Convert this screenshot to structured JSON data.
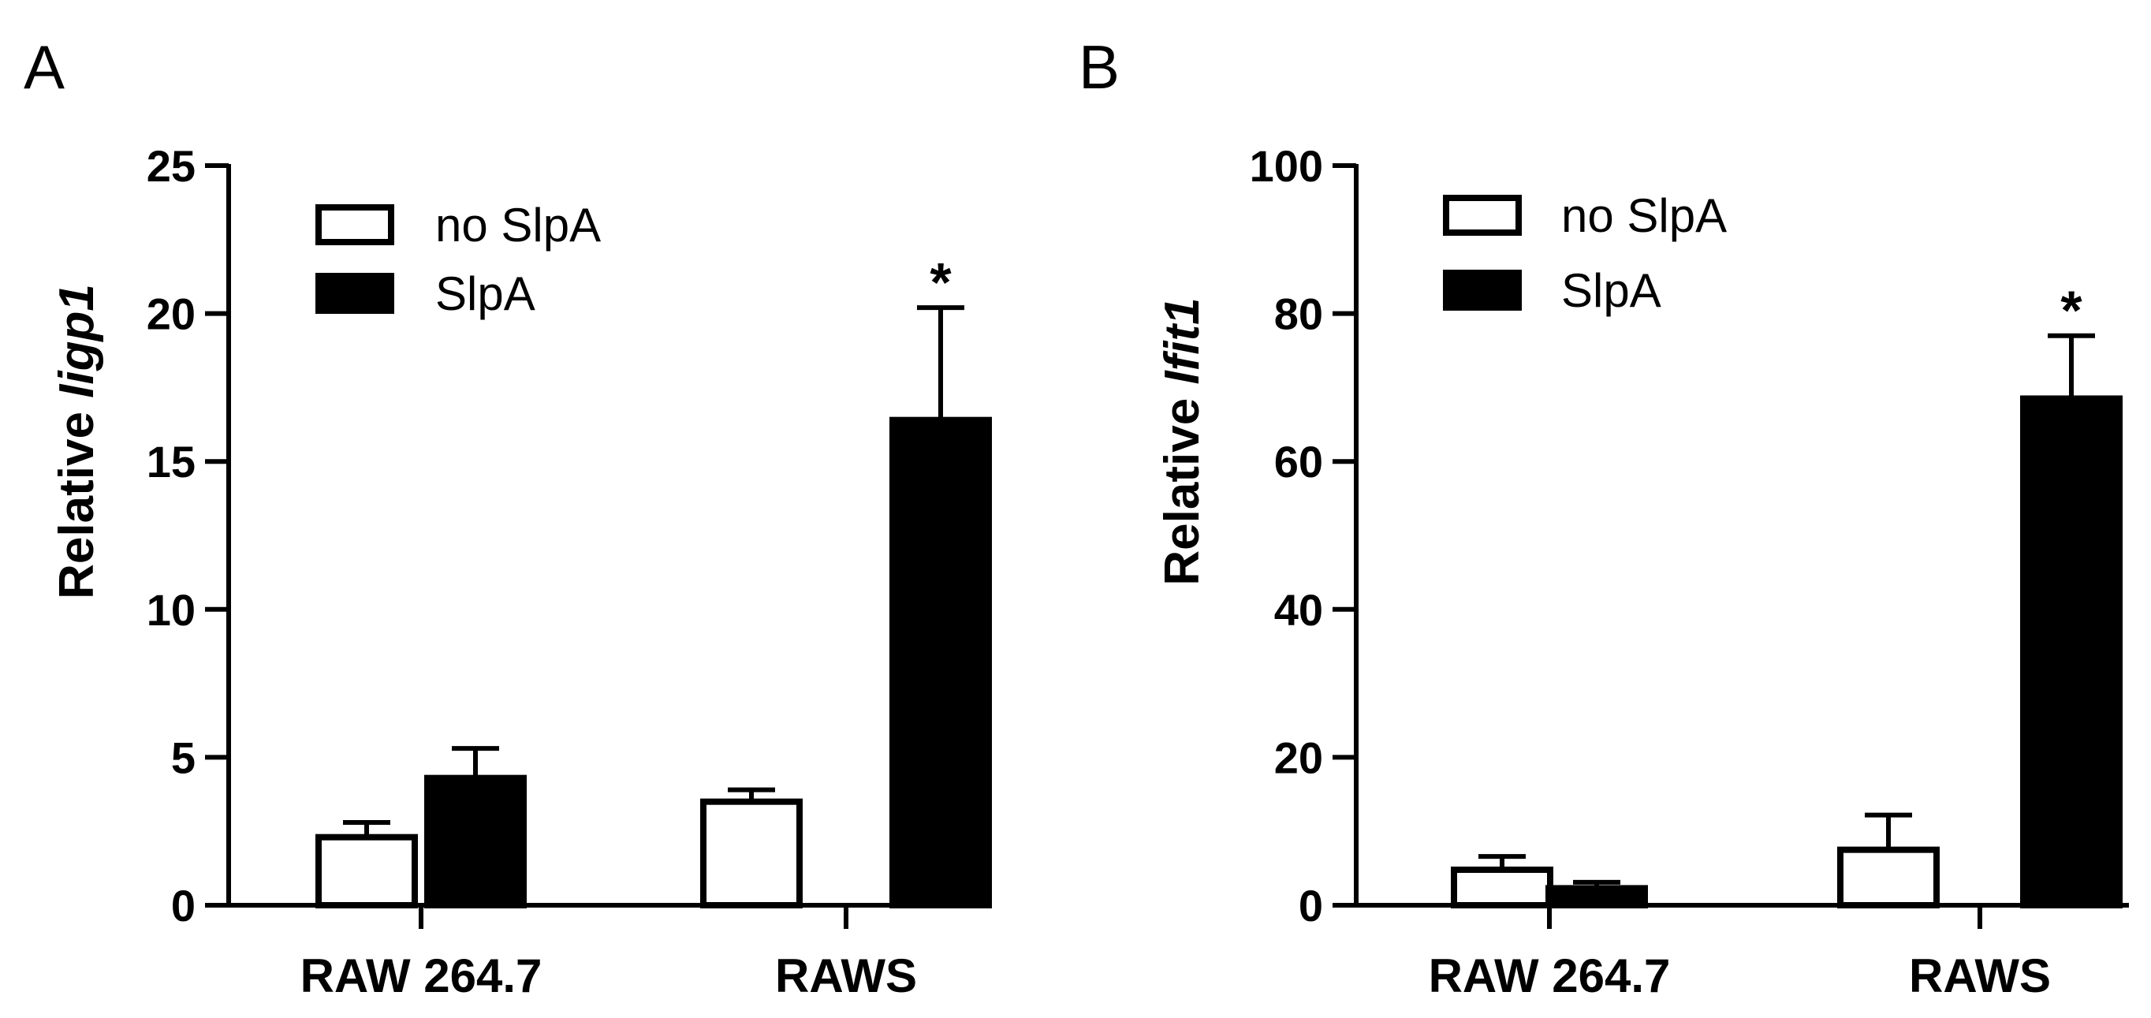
{
  "chart_data": [
    {
      "panel": "A",
      "type": "bar",
      "ylabel_prefix": "Relative ",
      "ylabel_gene": "Iigp1",
      "xlabel": "",
      "categories": [
        "RAW 264.7",
        "RAWS"
      ],
      "series": [
        {
          "name": "no SlpA",
          "values": [
            2.3,
            3.5
          ],
          "errors": [
            0.5,
            0.4
          ]
        },
        {
          "name": "SlpA",
          "values": [
            4.3,
            16.4
          ],
          "errors": [
            1.0,
            3.8
          ]
        }
      ],
      "yticks": [
        0,
        5,
        10,
        15,
        20,
        25
      ],
      "ylim": [
        0,
        25
      ],
      "annotations": [
        {
          "category": "RAWS",
          "series": "SlpA",
          "text": "*"
        }
      ],
      "legend": [
        "no SlpA",
        "SlpA"
      ],
      "legend_position": "top-left"
    },
    {
      "panel": "B",
      "type": "bar",
      "ylabel_prefix": "Relative ",
      "ylabel_gene": "Ifit1",
      "xlabel": "",
      "categories": [
        "RAW 264.7",
        "RAWS"
      ],
      "series": [
        {
          "name": "no SlpA",
          "values": [
            4.8,
            7.5
          ],
          "errors": [
            1.8,
            4.7
          ]
        },
        {
          "name": "SlpA",
          "values": [
            2.3,
            68.5
          ],
          "errors": [
            0.8,
            8.5
          ]
        }
      ],
      "yticks": [
        0,
        20,
        40,
        60,
        80,
        100
      ],
      "ylim": [
        0,
        100
      ],
      "annotations": [
        {
          "category": "RAWS",
          "series": "SlpA",
          "text": "*"
        }
      ],
      "legend": [
        "no SlpA",
        "SlpA"
      ],
      "legend_position": "top-left"
    }
  ],
  "colors": {
    "ink": "#000000",
    "open_fill": "#ffffff",
    "solid_fill": "#000000"
  }
}
